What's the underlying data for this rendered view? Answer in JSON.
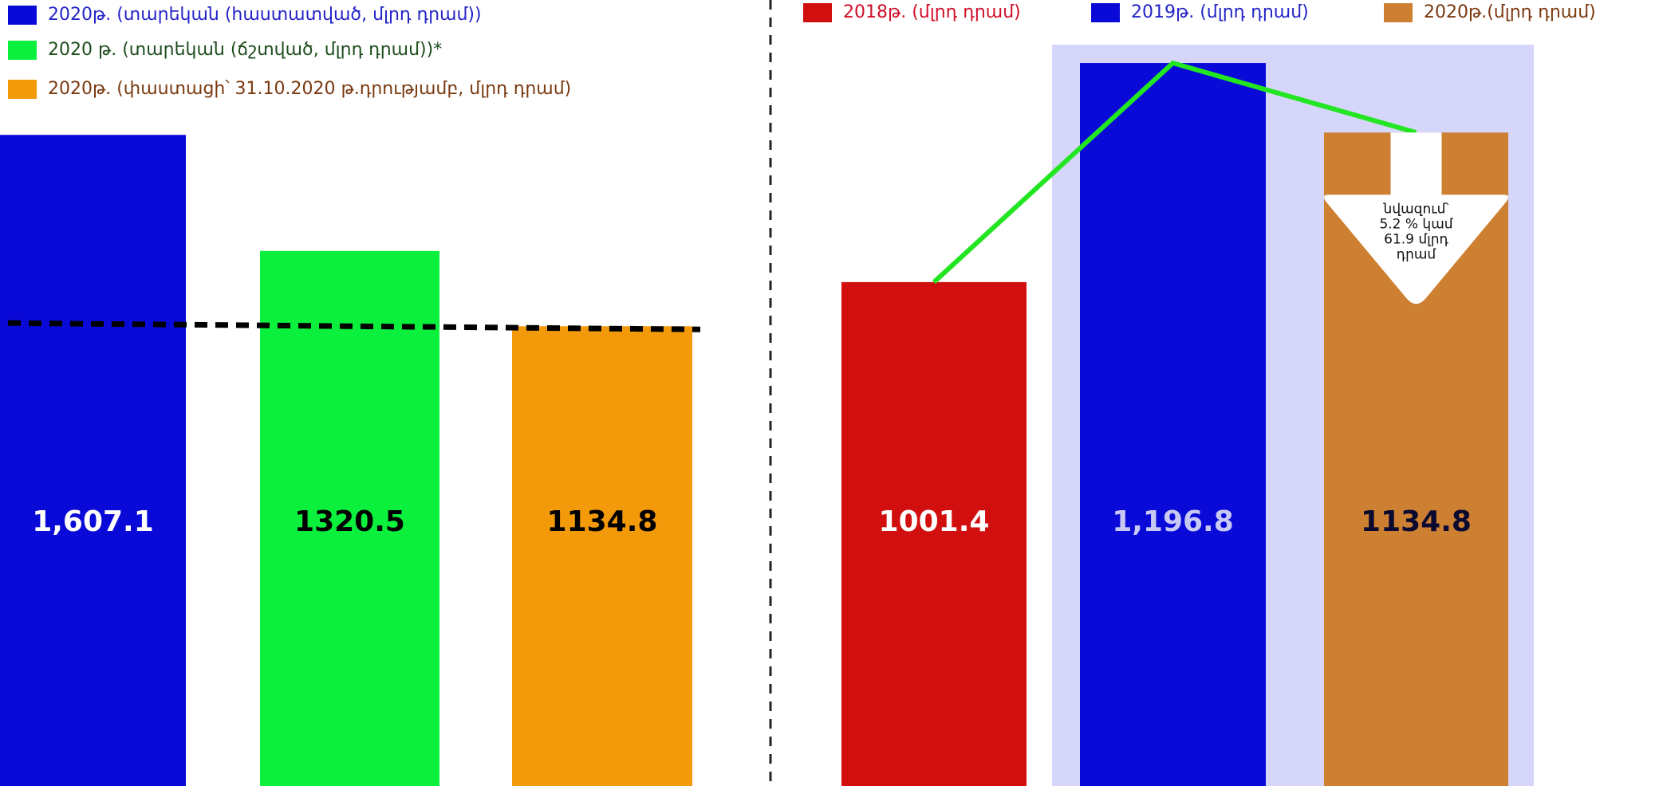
{
  "chart_data": [
    {
      "type": "bar",
      "series": [
        {
          "name": "2020թ. (տարեկան (հաստատված, մլրդ դրամ))",
          "color": "#0a0ad8",
          "text_color": "#2424c8",
          "label_color": "#ffffff",
          "values": [
            1607.1
          ],
          "value_labels": [
            "1,607.1"
          ]
        },
        {
          "name": "2020 թ. (տարեկան (ճշտված, մլրդ դրամ))*",
          "color": "#0af03c",
          "text_color": "#1d4d1d",
          "label_color": "#000000",
          "values": [
            1320.5
          ]
        },
        {
          "name": "2020թ. (փաստացի՝ 31.10.2020 թ.դրությամբ, մլրդ դրամ)",
          "color": "#f39a0b",
          "text_color": "#7a3a10",
          "label_color": "#000000",
          "values": [
            1134.8
          ]
        }
      ],
      "ylim": [
        0,
        1940
      ]
    },
    {
      "type": "bar",
      "series": [
        {
          "name": "2018թ. (մլրդ դրամ)",
          "color": "#d20f0f",
          "text_color": "#d20f2a",
          "label_color": "#ffffff",
          "values": [
            1001.4
          ]
        },
        {
          "name": "2019թ. (մլրդ դրամ)",
          "color": "#0a0ad8",
          "text_color": "#2424c8",
          "label_color": "#c8c8f5",
          "values": [
            1196.8
          ],
          "value_labels": [
            "1,196.8"
          ]
        },
        {
          "name": "2020թ.(մլրդ դրամ)",
          "color": "#cd7f32",
          "text_color": "#7a3a10",
          "label_color": "#0a0a30",
          "values": [
            1134.8
          ]
        }
      ],
      "ylim": [
        552,
        1253
      ],
      "annotation": [
        "նվազում՝",
        "5.2 % կամ",
        "61.9 մլրդ",
        "դրամ"
      ]
    }
  ]
}
